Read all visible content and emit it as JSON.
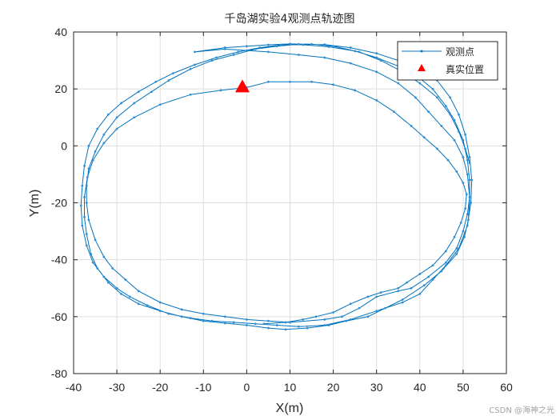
{
  "chart_data": {
    "type": "line",
    "title": "千岛湖实验4观测点轨迹图",
    "xlabel": "X(m)",
    "ylabel": "Y(m)",
    "xlim": [
      -40,
      60
    ],
    "ylim": [
      -80,
      40
    ],
    "xticks": [
      -40,
      -30,
      -20,
      -10,
      0,
      10,
      20,
      30,
      40,
      50,
      60
    ],
    "yticks": [
      40,
      20,
      0,
      -20,
      -40,
      -60,
      -80
    ],
    "grid": true,
    "legend_position": "northeast",
    "legend": [
      "观测点",
      "真实位置"
    ],
    "series": [
      {
        "name": "观测点",
        "color": "#0072BD",
        "marker": "dot",
        "points": [
          [
            51.5,
            -6
          ],
          [
            50.5,
            -1
          ],
          [
            49,
            5
          ],
          [
            47,
            11
          ],
          [
            44,
            17
          ],
          [
            40,
            22
          ],
          [
            36,
            26
          ],
          [
            31,
            30
          ],
          [
            26,
            33
          ],
          [
            20,
            35
          ],
          [
            15,
            35.7
          ],
          [
            10,
            35.8
          ],
          [
            5,
            35.5
          ],
          [
            0,
            35
          ],
          [
            -5,
            34.5
          ],
          [
            -12,
            33
          ],
          [
            -5,
            34
          ],
          [
            0,
            33.5
          ],
          [
            5,
            33
          ],
          [
            12,
            32
          ],
          [
            18,
            31
          ],
          [
            24,
            29
          ],
          [
            30,
            26
          ],
          [
            35,
            22
          ],
          [
            39,
            17
          ],
          [
            42,
            12
          ],
          [
            45,
            7
          ],
          [
            48,
            2
          ],
          [
            50,
            -4
          ],
          [
            51,
            -10
          ],
          [
            51.5,
            -18
          ],
          [
            51,
            -24
          ],
          [
            50,
            -30
          ],
          [
            48.5,
            -36
          ],
          [
            46,
            -41
          ],
          [
            42,
            -46
          ],
          [
            38,
            -50
          ],
          [
            35,
            -51
          ],
          [
            30,
            -53
          ],
          [
            26,
            -57
          ],
          [
            22,
            -60
          ],
          [
            18,
            -61
          ],
          [
            10,
            -62
          ],
          [
            5,
            -61.5
          ],
          [
            0,
            -61
          ],
          [
            -5,
            -60
          ],
          [
            -10,
            -59
          ],
          [
            -15,
            -57.5
          ],
          [
            -20,
            -55
          ],
          [
            -25,
            -51
          ],
          [
            -28,
            -47
          ],
          [
            -31,
            -43
          ],
          [
            -33,
            -39
          ],
          [
            -35,
            -33
          ],
          [
            -36.5,
            -26
          ],
          [
            -37,
            -20
          ],
          [
            -37,
            -14
          ],
          [
            -36.5,
            -8
          ],
          [
            -35,
            -2
          ],
          [
            -33,
            4
          ],
          [
            -30,
            10
          ],
          [
            -26,
            15
          ],
          [
            -22,
            19
          ],
          [
            -18,
            23
          ],
          [
            -13,
            27
          ],
          [
            -8,
            30
          ],
          [
            -3,
            32
          ],
          [
            2,
            34
          ],
          [
            7,
            35
          ],
          [
            12,
            35.7
          ],
          [
            18,
            35.6
          ],
          [
            24,
            34.5
          ],
          [
            30,
            32.5
          ],
          [
            35,
            30
          ],
          [
            40,
            27
          ],
          [
            44,
            23
          ],
          [
            47,
            17
          ],
          [
            49,
            11
          ],
          [
            50.5,
            4
          ],
          [
            51.5,
            -4
          ],
          [
            52,
            -12
          ],
          [
            51.8,
            -20
          ],
          [
            51,
            -28
          ],
          [
            49,
            -36
          ],
          [
            46,
            -42
          ],
          [
            43,
            -47
          ],
          [
            40,
            -52
          ],
          [
            36,
            -55
          ],
          [
            30,
            -58
          ],
          [
            24,
            -61
          ],
          [
            18,
            -63
          ],
          [
            12,
            -63.5
          ],
          [
            7,
            -63
          ],
          [
            2,
            -62.5
          ],
          [
            -3,
            -62
          ],
          [
            -8,
            -61.5
          ],
          [
            -13,
            -60.5
          ],
          [
            -18,
            -59
          ],
          [
            -23,
            -56
          ],
          [
            -27,
            -53
          ],
          [
            -30,
            -50
          ],
          [
            -33,
            -46
          ],
          [
            -35.5,
            -41
          ],
          [
            -37,
            -35
          ],
          [
            -38,
            -28
          ],
          [
            -38.3,
            -21
          ],
          [
            -38,
            -14
          ],
          [
            -37.5,
            -7
          ],
          [
            -36.5,
            0
          ],
          [
            -34.5,
            6
          ],
          [
            -32,
            11
          ],
          [
            -29,
            15
          ],
          [
            -25,
            19
          ],
          [
            -21,
            22.5
          ],
          [
            -17,
            25.5
          ],
          [
            -12,
            28.5
          ],
          [
            -7,
            31
          ],
          [
            -2,
            33
          ],
          [
            3,
            34.5
          ],
          [
            8,
            35.5
          ],
          [
            13,
            35.5
          ],
          [
            19,
            34.8
          ],
          [
            25,
            33.3
          ],
          [
            30,
            31
          ],
          [
            35,
            28
          ],
          [
            39,
            25
          ],
          [
            43,
            20
          ],
          [
            46,
            14
          ],
          [
            48,
            9
          ],
          [
            50,
            2
          ],
          [
            51,
            -5
          ],
          [
            51.5,
            -12
          ],
          [
            51.5,
            -20
          ],
          [
            51.2,
            -26
          ],
          [
            50.3,
            -32
          ],
          [
            48.5,
            -38
          ],
          [
            45,
            -44
          ],
          [
            41,
            -49
          ],
          [
            36,
            -54
          ],
          [
            32,
            -57
          ],
          [
            28,
            -60
          ],
          [
            23,
            -61.5
          ],
          [
            19,
            -63
          ],
          [
            14,
            -64
          ],
          [
            9,
            -64.5
          ],
          [
            5,
            -64
          ],
          [
            0,
            -63
          ],
          [
            -5,
            -62.3
          ],
          [
            -10,
            -61.5
          ],
          [
            -15,
            -60
          ],
          [
            -20,
            -58
          ],
          [
            -25,
            -55.5
          ],
          [
            -29,
            -52
          ],
          [
            -32,
            -48
          ],
          [
            -34.5,
            -43
          ],
          [
            -36,
            -38
          ],
          [
            -37,
            -31
          ],
          [
            -37.5,
            -25
          ],
          [
            -37.5,
            -18
          ],
          [
            -36.8,
            -11
          ],
          [
            -35.5,
            -5
          ],
          [
            -33,
            1
          ],
          [
            -30,
            6
          ],
          [
            -26,
            10
          ],
          [
            -20,
            14.5
          ],
          [
            -13,
            18
          ],
          [
            -6,
            19.5
          ],
          [
            0,
            20.5
          ],
          [
            5,
            22.5
          ],
          [
            10,
            22.5
          ],
          [
            15,
            22.5
          ],
          [
            20,
            21.5
          ],
          [
            25,
            19.5
          ],
          [
            30,
            16
          ],
          [
            34,
            12
          ],
          [
            38,
            7
          ],
          [
            41,
            3
          ],
          [
            44,
            -1
          ],
          [
            46.5,
            -5
          ],
          [
            48.5,
            -9
          ],
          [
            50,
            -13
          ],
          [
            50.8,
            -17
          ],
          [
            50.5,
            -22
          ],
          [
            49.5,
            -27
          ],
          [
            48,
            -32
          ],
          [
            46,
            -37
          ],
          [
            43,
            -42
          ],
          [
            40,
            -45
          ],
          [
            37,
            -48
          ],
          [
            35,
            -50
          ],
          [
            31,
            -51.5
          ],
          [
            28,
            -53
          ],
          [
            24,
            -55.5
          ],
          [
            20,
            -58.5
          ],
          [
            16,
            -60
          ],
          [
            13,
            -61
          ],
          [
            9,
            -62
          ],
          [
            4,
            -62.5
          ]
        ]
      },
      {
        "name": "真实位置",
        "color": "#FF0000",
        "marker": "triangle",
        "points": [
          [
            -1,
            20.5
          ]
        ]
      }
    ]
  },
  "figure": {
    "title": "千岛湖实验4观测点轨迹图",
    "xlabel": "X(m)",
    "ylabel": "Y(m)",
    "legend": {
      "items": [
        {
          "label": "观测点",
          "color": "#0072BD"
        },
        {
          "label": "真实位置",
          "color": "#FF0000"
        }
      ]
    },
    "watermark": "CSDN @海神之光"
  }
}
